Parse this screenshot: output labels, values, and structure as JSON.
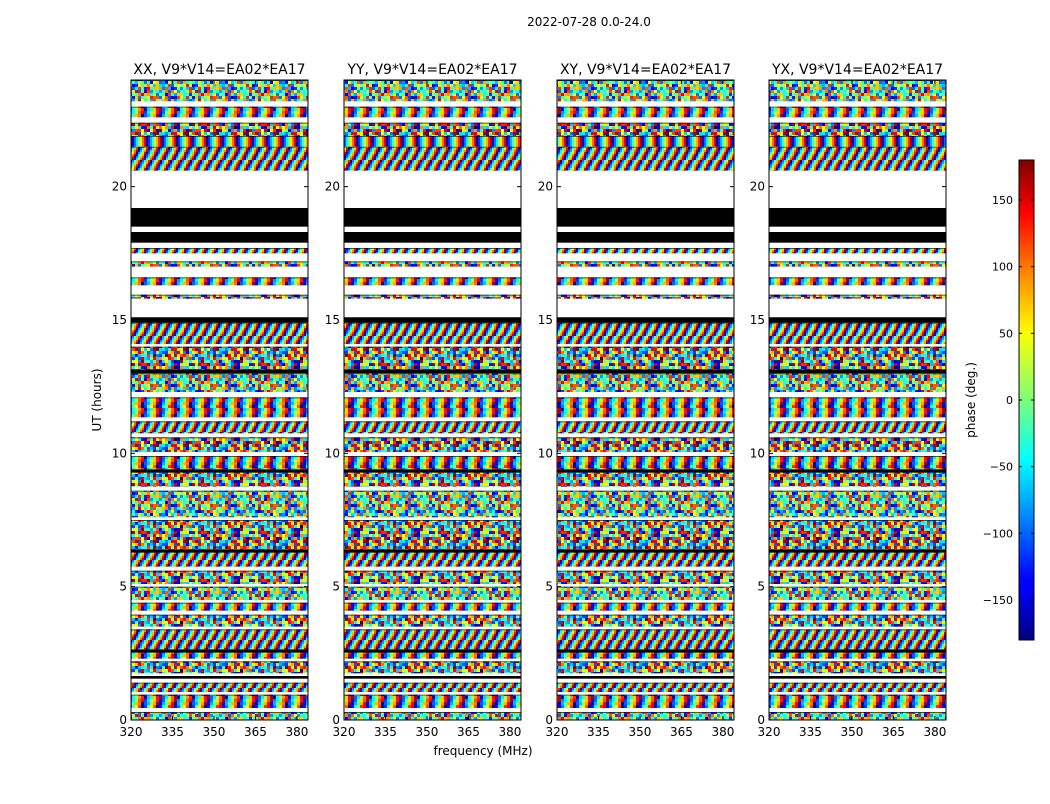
{
  "figure": {
    "suptitle": "2022-07-28 0.0-24.0",
    "ylabel": "UT (hours)",
    "xlabel": "frequency (MHz)"
  },
  "chart_data": {
    "type": "heatmap",
    "title": "2022-07-28 0.0-24.0",
    "xlabel": "frequency (MHz)",
    "ylabel": "UT (hours)",
    "xlim": [
      320,
      384
    ],
    "ylim": [
      0,
      24
    ],
    "x_ticks": [
      320,
      335,
      350,
      365,
      380
    ],
    "y_ticks": [
      0,
      5,
      10,
      15,
      20
    ],
    "panels": [
      {
        "title": "XX, V9*V14=EA02*EA17"
      },
      {
        "title": "YY, V9*V14=EA02*EA17"
      },
      {
        "title": "XY, V9*V14=EA02*EA17"
      },
      {
        "title": "YX, V9*V14=EA02*EA17"
      }
    ],
    "colorbar": {
      "label": "phase (deg.)",
      "range": [
        -180,
        180
      ],
      "ticks": [
        -150,
        -100,
        -50,
        0,
        50,
        100,
        150
      ],
      "colormap": "jet"
    },
    "grid": false
  }
}
